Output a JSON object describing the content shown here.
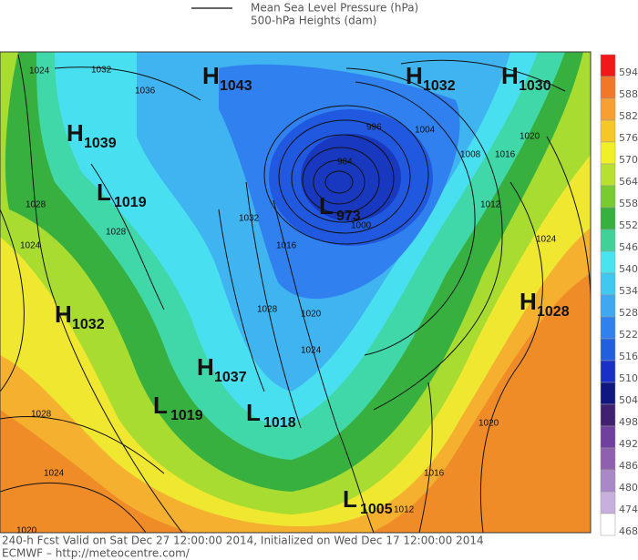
{
  "legend": {
    "line_1": "Mean Sea Level Pressure (hPa)",
    "line_2": "500-hPa Heights (dam)"
  },
  "centers": [
    {
      "letter": "H",
      "value": 1043
    },
    {
      "letter": "H",
      "value": 1032
    },
    {
      "letter": "H",
      "value": 1030
    },
    {
      "letter": "H",
      "value": 1039
    },
    {
      "letter": "L",
      "value": 1019
    },
    {
      "letter": "L",
      "value": 973
    },
    {
      "letter": "H",
      "value": 1032
    },
    {
      "letter": "H",
      "value": 1028
    },
    {
      "letter": "H",
      "value": 1037
    },
    {
      "letter": "L",
      "value": 1019
    },
    {
      "letter": "L",
      "value": 1018
    },
    {
      "letter": "L",
      "value": 1005
    }
  ],
  "contour_labels": [
    1024,
    1032,
    1036,
    1028,
    1024,
    1028,
    1028,
    1024,
    1020,
    1032,
    1016,
    1020,
    1028,
    1024,
    996,
    984,
    1004,
    1008,
    1000,
    1012,
    1016,
    1020,
    1024,
    1020,
    1016,
    1012
  ],
  "colorbar": [
    {
      "value": 594,
      "color": "#f01818"
    },
    {
      "value": 588,
      "color": "#f07828"
    },
    {
      "value": 582,
      "color": "#f5a030"
    },
    {
      "value": 576,
      "color": "#f5c828"
    },
    {
      "value": 570,
      "color": "#f0f028"
    },
    {
      "value": 564,
      "color": "#b8e030"
    },
    {
      "value": 558,
      "color": "#78cc30"
    },
    {
      "value": 552,
      "color": "#38b040"
    },
    {
      "value": 546,
      "color": "#40d098"
    },
    {
      "value": 540,
      "color": "#48e4f0"
    },
    {
      "value": 534,
      "color": "#40c8f0"
    },
    {
      "value": 528,
      "color": "#40a8f0"
    },
    {
      "value": 522,
      "color": "#3080f0"
    },
    {
      "value": 516,
      "color": "#2060e0"
    },
    {
      "value": 510,
      "color": "#1830c8"
    },
    {
      "value": 504,
      "color": "#101880"
    },
    {
      "value": 498,
      "color": "#402070"
    },
    {
      "value": 492,
      "color": "#7040a0"
    },
    {
      "value": 486,
      "color": "#9060b0"
    },
    {
      "value": 480,
      "color": "#a888c8"
    },
    {
      "value": 474,
      "color": "#c8b0dc"
    },
    {
      "value": 468,
      "color": "#ffffff"
    }
  ],
  "footer": {
    "line_1": "240-h Fcst Valid on Sat Dec 27 12:00:00 2014, Initialized on Wed Dec 17 12:00:00 2014",
    "line_2": "ECMWF  – http://meteocentre.com/"
  }
}
